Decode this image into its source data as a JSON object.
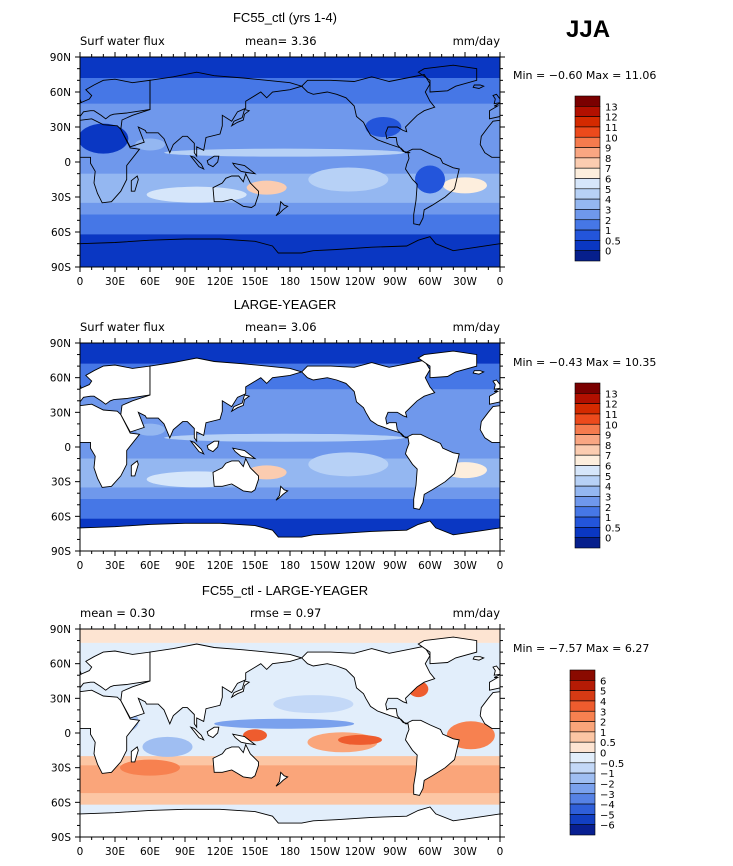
{
  "season": "JJA",
  "axes": {
    "lat_labels": [
      "90N",
      "60N",
      "30N",
      "0",
      "30S",
      "60S",
      "90S"
    ],
    "lon_labels": [
      "0",
      "30E",
      "60E",
      "90E",
      "120E",
      "150E",
      "180",
      "150W",
      "120W",
      "90W",
      "60W",
      "30W",
      "0"
    ]
  },
  "panels": [
    {
      "title": "FC55_ctl (yrs 1-4)",
      "left_label": "Surf water flux",
      "center_label": "mean=   3.36",
      "right_label": "mm/day",
      "minmax": "Min =  −0.60 Max =  11.06",
      "colorbar_labels": [
        "13",
        "12",
        "11",
        "10",
        "9",
        "8",
        "7",
        "6",
        "5",
        "4",
        "3",
        "2",
        "1",
        "0.5",
        "0"
      ],
      "colors": [
        "#7a0000",
        "#b21000",
        "#d42a00",
        "#ec4a1c",
        "#f57b4e",
        "#f9a682",
        "#fbccb0",
        "#fdeedd",
        "#d6e6fa",
        "#b7d1f6",
        "#94b7f1",
        "#6f98ec",
        "#4677e6",
        "#2355db",
        "#0a37c3",
        "#061f8c"
      ],
      "land_masked": false
    },
    {
      "title": "LARGE-YEAGER",
      "left_label": "Surf water flux",
      "center_label": "mean=   3.06",
      "right_label": "mm/day",
      "minmax": "Min =  −0.43 Max =  10.35",
      "colorbar_labels": [
        "13",
        "12",
        "11",
        "10",
        "9",
        "8",
        "7",
        "6",
        "5",
        "4",
        "3",
        "2",
        "1",
        "0.5",
        "0"
      ],
      "colors": [
        "#7a0000",
        "#b21000",
        "#d42a00",
        "#ec4a1c",
        "#f57b4e",
        "#f9a682",
        "#fbccb0",
        "#fdeedd",
        "#d6e6fa",
        "#b7d1f6",
        "#94b7f1",
        "#6f98ec",
        "#4677e6",
        "#2355db",
        "#0a37c3",
        "#061f8c"
      ],
      "land_masked": true
    },
    {
      "title": "FC55_ctl - LARGE-YEAGER",
      "left_label": "mean =    0.30",
      "center_label": "rmse =    0.97",
      "right_label": "mm/day",
      "minmax": "Min =  −7.57 Max =    6.27",
      "colorbar_labels": [
        "6",
        "5",
        "4",
        "3",
        "2",
        "1",
        "0.5",
        "0",
        "−0.5",
        "−1",
        "−2",
        "−3",
        "−4",
        "−5",
        "−6"
      ],
      "colors": [
        "#8a0a00",
        "#b51b05",
        "#d63a14",
        "#ee5c2e",
        "#f78150",
        "#faa57a",
        "#fcc6a4",
        "#fde4d2",
        "#e2eefb",
        "#c3d8f7",
        "#9fbef2",
        "#7aa1ed",
        "#5682e5",
        "#2f5fd9",
        "#123fc2",
        "#081f91"
      ],
      "land_masked": true
    }
  ]
}
